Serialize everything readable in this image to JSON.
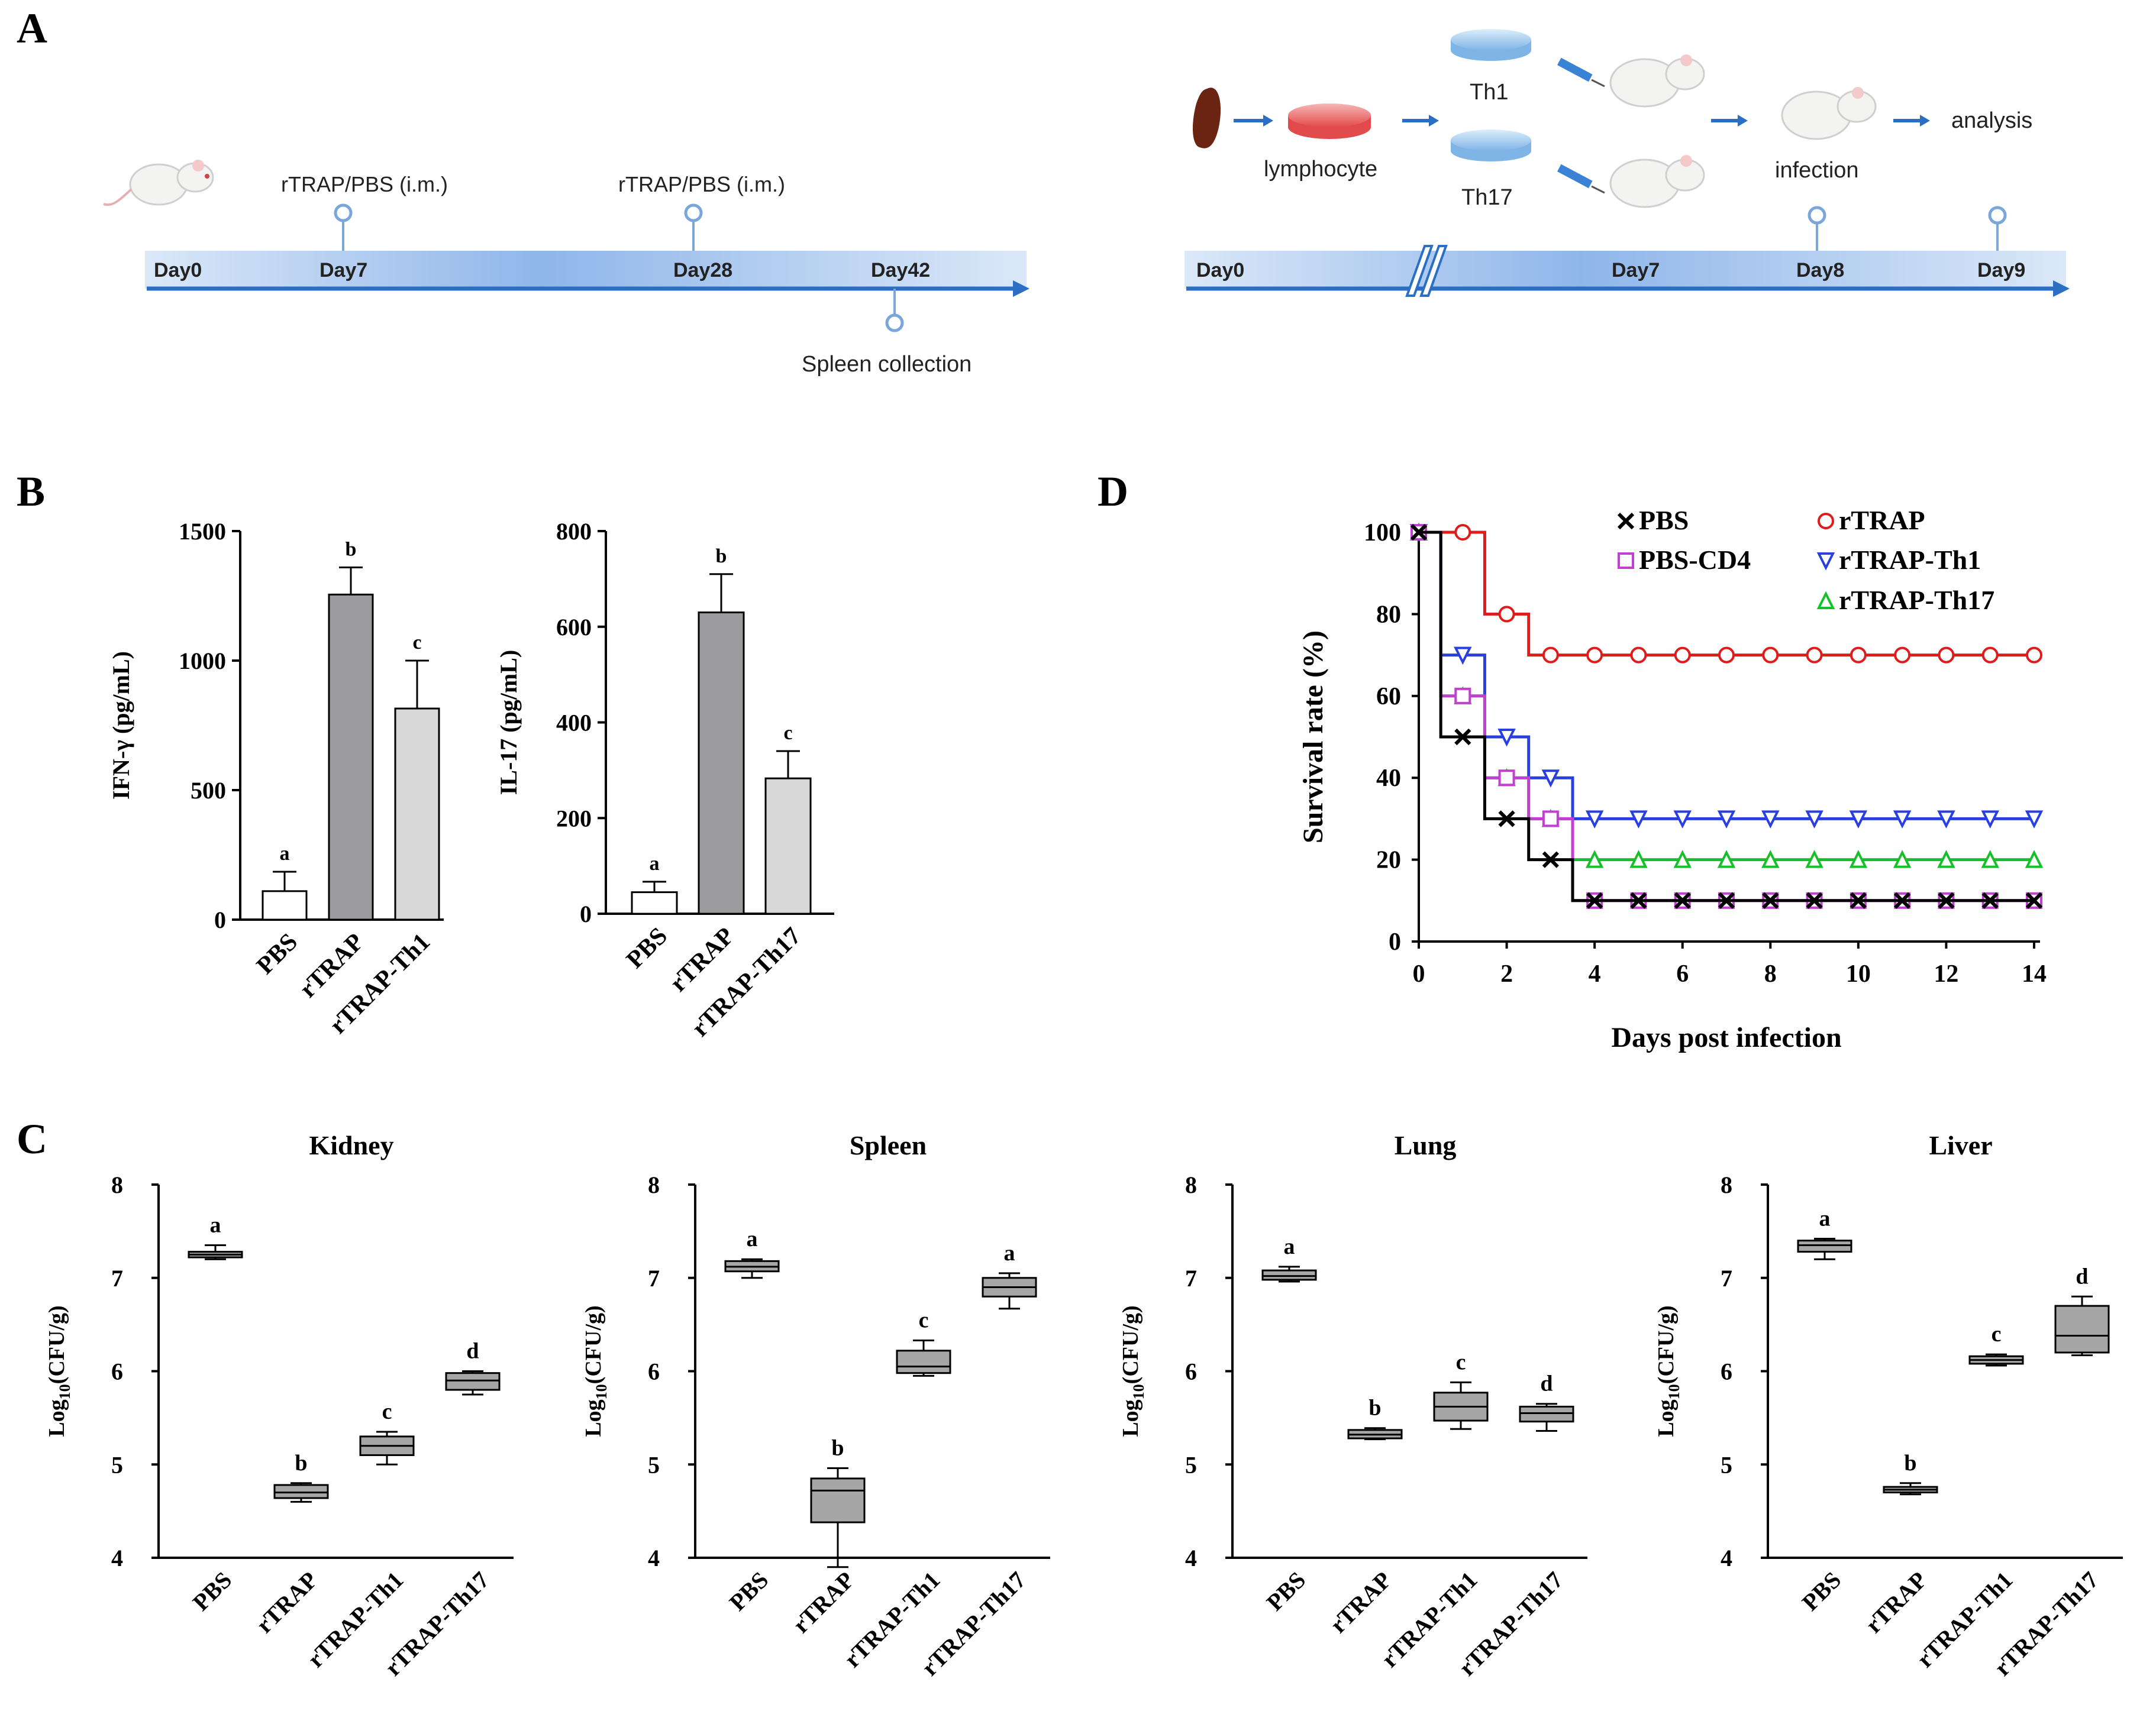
{
  "panel_labels": {
    "a": "A",
    "b": "B",
    "c": "C",
    "d": "D"
  },
  "timeline_left": {
    "labels": {
      "day0": "Day0",
      "day7": "Day7",
      "day28": "Day28",
      "day42": "Day42"
    },
    "injection_1": "rTRAP/PBS (i.m.)",
    "injection_2": "rTRAP/PBS (i.m.)",
    "collection": "Spleen collection"
  },
  "timeline_right": {
    "labels": {
      "day0": "Day0",
      "day7": "Day7",
      "day8": "Day8",
      "day9": "Day9"
    },
    "lymphocyte": "lymphocyte",
    "th1": "Th1",
    "th17": "Th17",
    "infection": "infection",
    "analysis": "analysis"
  },
  "colors": {
    "bar_white": "#ffffff",
    "bar_dark": "#9c9c9e",
    "bar_light": "#d8d8d8",
    "box_fill": "#a6a6a6",
    "timeline": "#4a8fd8",
    "pbs": "#000000",
    "rtrap": "#e01b1b",
    "pbs_cd4": "#c13fd1",
    "rtrap_th1": "#2a3fe0",
    "rtrap_th17": "#16c02a"
  },
  "chart_data": [
    {
      "id": "B1",
      "type": "bar",
      "title": "",
      "categories": [
        "PBS",
        "rTRAP",
        "rTRAP-Th1"
      ],
      "values": [
        110,
        1255,
        815
      ],
      "errors": [
        75,
        105,
        185
      ],
      "letters": [
        "a",
        "b",
        "c"
      ],
      "ylabel": "IFN-γ (pg/mL)",
      "ylim": [
        0,
        1500
      ],
      "yticks": [
        "0",
        "500",
        "1000",
        "1500"
      ]
    },
    {
      "id": "B2",
      "type": "bar",
      "title": "",
      "categories": [
        "PBS",
        "rTRAP",
        "rTRAP-Th17"
      ],
      "values": [
        45,
        630,
        283
      ],
      "errors": [
        22,
        80,
        57
      ],
      "letters": [
        "a",
        "b",
        "c"
      ],
      "ylabel": "IL-17 (pg/mL)",
      "ylim": [
        0,
        800
      ],
      "yticks": [
        "0",
        "200",
        "400",
        "600",
        "800"
      ]
    },
    {
      "id": "C",
      "type": "box",
      "categories": [
        "PBS",
        "rTRAP",
        "rTRAP-Th1",
        "rTRAP-Th17"
      ],
      "ylabel_base": "Log",
      "ylabel_sub": "10",
      "ylabel_rest": "(CFU/g)",
      "ylim": [
        4,
        8
      ],
      "yticks": [
        "4",
        "5",
        "6",
        "7",
        "8"
      ],
      "panels": [
        {
          "title": "Kidney",
          "letters": [
            "a",
            "b",
            "c",
            "d"
          ],
          "boxes": [
            [
              7.2,
              7.22,
              7.25,
              7.28,
              7.35
            ],
            [
              4.6,
              4.64,
              4.7,
              4.78,
              4.8
            ],
            [
              5.0,
              5.1,
              5.2,
              5.3,
              5.35
            ],
            [
              5.75,
              5.8,
              5.9,
              5.98,
              6.0
            ]
          ]
        },
        {
          "title": "Spleen",
          "letters": [
            "a",
            "b",
            "c",
            "a"
          ],
          "boxes": [
            [
              7.0,
              7.07,
              7.12,
              7.18,
              7.2
            ],
            [
              3.9,
              4.38,
              4.72,
              4.85,
              4.96
            ],
            [
              5.95,
              5.98,
              6.05,
              6.22,
              6.33
            ],
            [
              6.67,
              6.8,
              6.9,
              7.0,
              7.05
            ]
          ]
        },
        {
          "title": "Lung",
          "letters": [
            "a",
            "b",
            "c",
            "d"
          ],
          "boxes": [
            [
              6.96,
              6.98,
              7.02,
              7.08,
              7.12
            ],
            [
              5.27,
              5.28,
              5.32,
              5.37,
              5.39
            ],
            [
              5.38,
              5.47,
              5.62,
              5.77,
              5.88
            ],
            [
              5.36,
              5.46,
              5.55,
              5.62,
              5.65
            ]
          ]
        },
        {
          "title": "Liver",
          "letters": [
            "a",
            "b",
            "c",
            "d"
          ],
          "boxes": [
            [
              7.2,
              7.28,
              7.35,
              7.4,
              7.42
            ],
            [
              4.68,
              4.7,
              4.73,
              4.76,
              4.8
            ],
            [
              6.06,
              6.08,
              6.12,
              6.16,
              6.18
            ],
            [
              6.17,
              6.2,
              6.38,
              6.7,
              6.8
            ]
          ]
        }
      ]
    },
    {
      "id": "D",
      "type": "line",
      "xlabel": "Days post infection",
      "ylabel": "Survival rate (%)",
      "xlim": [
        0,
        14
      ],
      "ylim": [
        0,
        100
      ],
      "xticks": [
        "0",
        "2",
        "4",
        "6",
        "8",
        "10",
        "12",
        "14"
      ],
      "yticks": [
        "0",
        "20",
        "40",
        "60",
        "80",
        "100"
      ],
      "series": [
        {
          "name": "PBS",
          "marker": "x",
          "colorKey": "pbs",
          "steps": [
            [
              0,
              100
            ],
            [
              0.5,
              50
            ],
            [
              1.5,
              30
            ],
            [
              2.5,
              20
            ],
            [
              3.5,
              10
            ],
            [
              14,
              10
            ]
          ],
          "points": [
            [
              0,
              100
            ],
            [
              1,
              50
            ],
            [
              2,
              30
            ],
            [
              3,
              20
            ],
            [
              4,
              10
            ],
            [
              5,
              10
            ],
            [
              6,
              10
            ],
            [
              7,
              10
            ],
            [
              8,
              10
            ],
            [
              9,
              10
            ],
            [
              10,
              10
            ],
            [
              11,
              10
            ],
            [
              12,
              10
            ],
            [
              13,
              10
            ],
            [
              14,
              10
            ]
          ]
        },
        {
          "name": "PBS-CD4",
          "marker": "square",
          "colorKey": "pbs_cd4",
          "steps": [
            [
              0,
              100
            ],
            [
              0.5,
              60
            ],
            [
              1.5,
              40
            ],
            [
              2.5,
              30
            ],
            [
              3.5,
              10
            ],
            [
              14,
              10
            ]
          ],
          "points": [
            [
              0,
              100
            ],
            [
              1,
              60
            ],
            [
              2,
              40
            ],
            [
              3,
              30
            ],
            [
              4,
              10
            ],
            [
              5,
              10
            ],
            [
              6,
              10
            ],
            [
              7,
              10
            ],
            [
              8,
              10
            ],
            [
              9,
              10
            ],
            [
              10,
              10
            ],
            [
              11,
              10
            ],
            [
              12,
              10
            ],
            [
              13,
              10
            ],
            [
              14,
              10
            ]
          ]
        },
        {
          "name": "rTRAP",
          "marker": "circle",
          "colorKey": "rtrap",
          "steps": [
            [
              0,
              100
            ],
            [
              1.5,
              80
            ],
            [
              2.5,
              70
            ],
            [
              14,
              70
            ]
          ],
          "points": [
            [
              0,
              100
            ],
            [
              1,
              100
            ],
            [
              2,
              80
            ],
            [
              3,
              70
            ],
            [
              4,
              70
            ],
            [
              5,
              70
            ],
            [
              6,
              70
            ],
            [
              7,
              70
            ],
            [
              8,
              70
            ],
            [
              9,
              70
            ],
            [
              10,
              70
            ],
            [
              11,
              70
            ],
            [
              12,
              70
            ],
            [
              13,
              70
            ],
            [
              14,
              70
            ]
          ]
        },
        {
          "name": "rTRAP-Th1",
          "marker": "tri-down",
          "colorKey": "rtrap_th1",
          "steps": [
            [
              0,
              100
            ],
            [
              0.5,
              70
            ],
            [
              1.5,
              50
            ],
            [
              2.5,
              40
            ],
            [
              3.5,
              30
            ],
            [
              14,
              30
            ]
          ],
          "points": [
            [
              0,
              100
            ],
            [
              1,
              70
            ],
            [
              2,
              50
            ],
            [
              3,
              40
            ],
            [
              4,
              30
            ],
            [
              5,
              30
            ],
            [
              6,
              30
            ],
            [
              7,
              30
            ],
            [
              8,
              30
            ],
            [
              9,
              30
            ],
            [
              10,
              30
            ],
            [
              11,
              30
            ],
            [
              12,
              30
            ],
            [
              13,
              30
            ],
            [
              14,
              30
            ]
          ]
        },
        {
          "name": "rTRAP-Th17",
          "marker": "tri-up",
          "colorKey": "rtrap_th17",
          "steps": [
            [
              0,
              100
            ],
            [
              0.5,
              60
            ],
            [
              1.5,
              40
            ],
            [
              2.5,
              30
            ],
            [
              3.5,
              20
            ],
            [
              14,
              20
            ]
          ],
          "points": [
            [
              0,
              100
            ],
            [
              1,
              60
            ],
            [
              2,
              40
            ],
            [
              3,
              30
            ],
            [
              4,
              20
            ],
            [
              5,
              20
            ],
            [
              6,
              20
            ],
            [
              7,
              20
            ],
            [
              8,
              20
            ],
            [
              9,
              20
            ],
            [
              10,
              20
            ],
            [
              11,
              20
            ],
            [
              12,
              20
            ],
            [
              13,
              20
            ],
            [
              14,
              20
            ]
          ]
        }
      ]
    }
  ]
}
